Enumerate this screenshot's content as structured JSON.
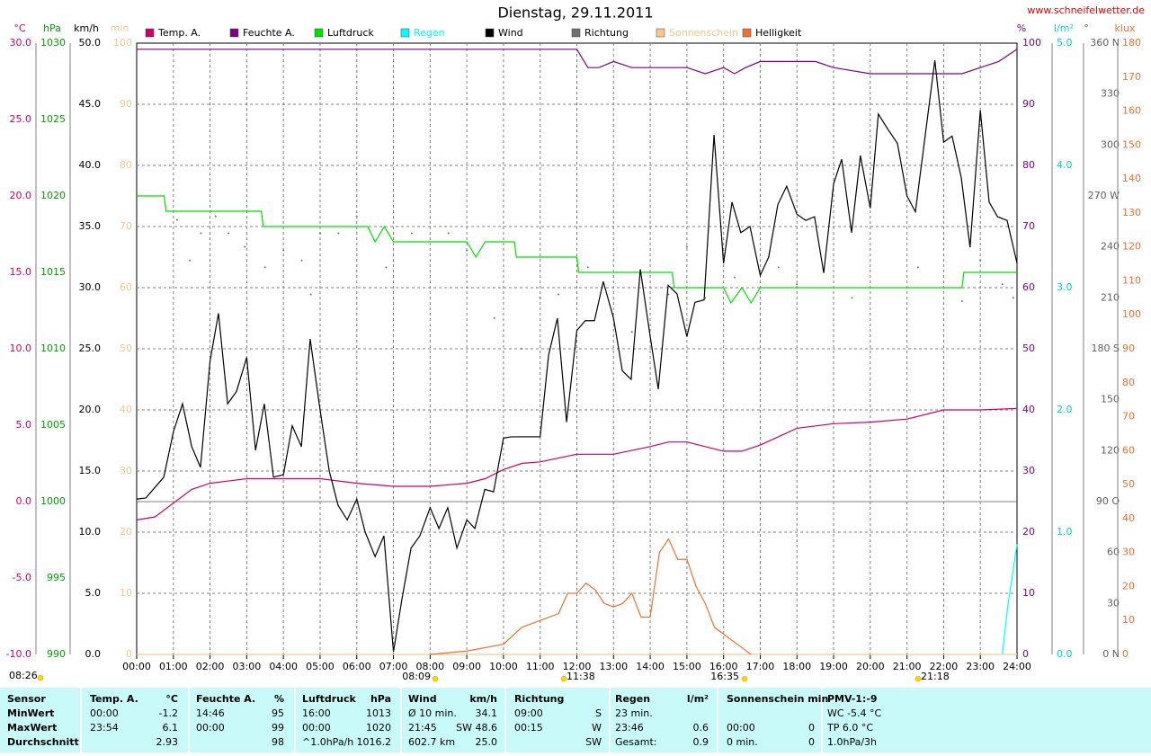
{
  "chart_data": {
    "type": "line",
    "title": "Dienstag, 29.11.2011",
    "source": "www.schneifelwetter.de",
    "xlim": [
      0,
      24
    ],
    "xticks": [
      {
        "value": 0,
        "label": "00:00"
      },
      {
        "value": 1,
        "label": "01:00"
      },
      {
        "value": 2,
        "label": "02:00"
      },
      {
        "value": 3,
        "label": "03:00"
      },
      {
        "value": 4,
        "label": "04:00"
      },
      {
        "value": 5,
        "label": "05:00"
      },
      {
        "value": 6,
        "label": "06:00"
      },
      {
        "value": 7,
        "label": "07:00"
      },
      {
        "value": 8,
        "label": "08:00"
      },
      {
        "value": 9,
        "label": "09:00"
      },
      {
        "value": 10,
        "label": "10:00"
      },
      {
        "value": 11,
        "label": "11:00"
      },
      {
        "value": 12,
        "label": "12:00"
      },
      {
        "value": 13,
        "label": "13:00"
      },
      {
        "value": 14,
        "label": "14:00"
      },
      {
        "value": 15,
        "label": "15:00"
      },
      {
        "value": 16,
        "label": "16:00"
      },
      {
        "value": 17,
        "label": "17:00"
      },
      {
        "value": 18,
        "label": "18:00"
      },
      {
        "value": 19,
        "label": "19:00"
      },
      {
        "value": 20,
        "label": "20:00"
      },
      {
        "value": 21,
        "label": "21:00"
      },
      {
        "value": 22,
        "label": "22:00"
      },
      {
        "value": 23,
        "label": "23:00"
      },
      {
        "value": 24,
        "label": "24:00"
      }
    ],
    "grid": true,
    "zero_line_axis": 0,
    "axes": [
      {
        "unit": "°C",
        "color": "#cc0066",
        "lim": [
          -10,
          30
        ],
        "ticks": [
          {
            "value": 30,
            "label": "30.0"
          },
          {
            "value": 25,
            "label": "25.0"
          },
          {
            "value": 20,
            "label": "20.0"
          },
          {
            "value": 15,
            "label": "15.0"
          },
          {
            "value": 10,
            "label": "10.0"
          },
          {
            "value": 5,
            "label": "5.0"
          },
          {
            "value": 0,
            "label": "0.0"
          },
          {
            "value": -5,
            "label": "-5.0"
          },
          {
            "value": -10,
            "label": "-10.0"
          }
        ]
      },
      {
        "unit": "hPa",
        "color": "#00a000",
        "lim": [
          990,
          1030
        ],
        "ticks": [
          1030,
          1025,
          1020,
          1015,
          1010,
          1005,
          1000,
          995,
          990
        ]
      },
      {
        "unit": "km/h",
        "color": "#000000",
        "lim": [
          0,
          50
        ],
        "ticks": [
          {
            "value": 50,
            "label": "50.0"
          },
          {
            "value": 45,
            "label": "45.0"
          },
          {
            "value": 40,
            "label": "40.0"
          },
          {
            "value": 35,
            "label": "35.0"
          },
          {
            "value": 30,
            "label": "30.0"
          },
          {
            "value": 25,
            "label": "25.0"
          },
          {
            "value": 20,
            "label": "20.0"
          },
          {
            "value": 15,
            "label": "15.0"
          },
          {
            "value": 10,
            "label": "10.0"
          },
          {
            "value": 5,
            "label": "5.0"
          },
          {
            "value": 0,
            "label": "0.0"
          }
        ]
      },
      {
        "unit": "min",
        "color": "#f5c890",
        "lim": [
          0,
          100
        ],
        "ticks": [
          100,
          90,
          80,
          70,
          60,
          50,
          40,
          30,
          20,
          10,
          0
        ]
      },
      {
        "unit": "%",
        "color": "#800080",
        "lim": [
          0,
          100
        ],
        "ticks": [
          100,
          90,
          80,
          70,
          60,
          50,
          40,
          30,
          20,
          10,
          0
        ]
      },
      {
        "unit": "l/m²",
        "color": "#00d0d0",
        "lim": [
          0,
          5
        ],
        "ticks": [
          {
            "value": 5,
            "label": "5.0"
          },
          {
            "value": 4,
            "label": "4.0"
          },
          {
            "value": 3,
            "label": "3.0"
          },
          {
            "value": 2,
            "label": "2.0"
          },
          {
            "value": 1,
            "label": "1.0"
          },
          {
            "value": 0,
            "label": "0.0"
          }
        ]
      },
      {
        "unit": "°",
        "color": "#606060",
        "lim": [
          0,
          360
        ],
        "ticks": [
          {
            "value": 360,
            "label": "360 N"
          },
          330,
          300,
          {
            "value": 270,
            "label": "270 W"
          },
          240,
          210,
          {
            "value": 180,
            "label": "180 S"
          },
          150,
          120,
          {
            "value": 90,
            "label": "90 O"
          },
          60,
          30,
          {
            "value": 0,
            "label": "0 N"
          }
        ]
      },
      {
        "unit": "klux",
        "color": "#f07030",
        "lim": [
          0,
          180
        ],
        "ticks": [
          180,
          170,
          160,
          150,
          140,
          130,
          120,
          110,
          100,
          90,
          80,
          70,
          60,
          50,
          40,
          30,
          20,
          10,
          0
        ]
      }
    ],
    "series": [
      {
        "name": "Temp. A.",
        "color": "#cc0066",
        "axis": 0,
        "style": "line",
        "x": [
          0,
          0.5,
          1,
          1.5,
          2,
          3,
          4,
          5,
          6,
          7,
          8,
          9,
          9.5,
          10,
          10.5,
          11,
          12,
          13,
          14,
          14.5,
          15,
          16,
          16.5,
          17,
          18,
          19,
          20,
          21,
          22,
          23,
          24
        ],
        "values": [
          -1.2,
          -1.0,
          -0.1,
          0.8,
          1.2,
          1.5,
          1.5,
          1.5,
          1.2,
          1.0,
          1.0,
          1.2,
          1.5,
          2.1,
          2.5,
          2.6,
          3.1,
          3.1,
          3.6,
          3.9,
          3.9,
          3.3,
          3.3,
          3.7,
          4.8,
          5.1,
          5.2,
          5.4,
          6.0,
          6.0,
          6.1
        ]
      },
      {
        "name": "Feuchte A.",
        "color": "#800080",
        "axis": 4,
        "style": "line",
        "x": [
          0,
          12,
          12.3,
          12.6,
          13,
          13.5,
          15,
          15.5,
          16,
          16.3,
          16.6,
          17,
          18.5,
          19,
          20,
          22.5,
          23,
          23.5,
          24
        ],
        "values": [
          99,
          99,
          96,
          96,
          97,
          96,
          96,
          95,
          96,
          95,
          96,
          97,
          97,
          96,
          95,
          95,
          96,
          97,
          99
        ]
      },
      {
        "name": "Luftdruck",
        "color": "#00e000",
        "axis": 1,
        "style": "line",
        "x": [
          0,
          0.75,
          0.8,
          3.4,
          3.45,
          6.3,
          6.5,
          6.75,
          7,
          9,
          9.25,
          9.5,
          10.3,
          10.35,
          12,
          12.05,
          14.6,
          14.65,
          16,
          16.2,
          16.5,
          16.75,
          17,
          22.5,
          22.55,
          24
        ],
        "values": [
          1020,
          1020,
          1019,
          1019,
          1018,
          1018,
          1017,
          1018,
          1017,
          1017,
          1016,
          1017,
          1017,
          1016,
          1016,
          1015,
          1015,
          1014,
          1014,
          1013,
          1014,
          1013,
          1014,
          1014,
          1015,
          1015
        ]
      },
      {
        "name": "Regen",
        "color": "#00ffff",
        "axis": 5,
        "style": "line",
        "x": [
          23.6,
          23.75,
          23.85,
          24
        ],
        "values": [
          0,
          0.4,
          0.6,
          0.9
        ]
      },
      {
        "name": "Wind",
        "color": "#000000",
        "axis": 2,
        "style": "line",
        "x": [
          0,
          0.25,
          0.74,
          1,
          1.25,
          1.5,
          1.74,
          2,
          2.23,
          2.48,
          2.72,
          3,
          3.24,
          3.48,
          3.73,
          4,
          4.24,
          4.49,
          4.73,
          5,
          5.25,
          5.49,
          5.74,
          6,
          6.23,
          6.5,
          6.74,
          7,
          7.23,
          7.48,
          7.72,
          8,
          8.24,
          8.48,
          8.73,
          9,
          9.22,
          9.49,
          9.73,
          10,
          10.22,
          11,
          11.23,
          11.47,
          11.72,
          12,
          12.23,
          12.48,
          12.72,
          13,
          13.24,
          13.48,
          13.73,
          14,
          14.22,
          14.49,
          14.73,
          15,
          15.22,
          15.47,
          15.74,
          16,
          16.23,
          16.47,
          16.72,
          17,
          17.23,
          17.48,
          17.72,
          18,
          18.24,
          18.48,
          18.73,
          19,
          19.22,
          19.49,
          19.73,
          20,
          20.22,
          20.47,
          20.74,
          21,
          21.23,
          21.76,
          22,
          22.23,
          22.48,
          22.72,
          23,
          23.24,
          23.47,
          23.73,
          24
        ],
        "values": [
          12.7,
          12.8,
          14.5,
          18.2,
          20.5,
          17,
          15.3,
          24,
          27.9,
          20.5,
          21.5,
          24.3,
          16.7,
          20.5,
          14.5,
          14.7,
          18.7,
          17,
          25.8,
          20,
          15,
          12.2,
          11,
          12.7,
          10,
          8,
          9.7,
          0.2,
          4.5,
          8.7,
          9.7,
          12,
          10.3,
          12,
          8.7,
          11,
          10.3,
          13.5,
          13.3,
          17.7,
          17.8,
          17.8,
          24.5,
          27.5,
          19,
          26.5,
          27.3,
          27.3,
          30.5,
          27.5,
          23.2,
          22.5,
          31.5,
          26,
          21.7,
          30.2,
          29.5,
          26,
          28.8,
          29,
          42.5,
          32,
          37,
          34.5,
          35,
          31,
          32.5,
          36.8,
          38.3,
          36,
          35.5,
          35.8,
          31.2,
          38.5,
          40.5,
          34.5,
          40.8,
          36.5,
          44.2,
          43,
          41.8,
          37.5,
          36.2,
          48.6,
          41.9,
          42.4,
          39,
          33.3,
          44.5,
          37,
          35.8,
          35.5,
          32
        ]
      },
      {
        "name": "Richtung",
        "color": "#707070",
        "axis": 6,
        "style": "dots",
        "x": [
          1.1,
          1.45,
          1.75,
          2.15,
          2.5,
          2.95,
          3.5,
          4.0,
          4.5,
          4.75,
          5.0,
          5.5,
          6.0,
          6.8,
          7.5,
          8.5,
          9.0,
          9.75,
          10.5,
          11.0,
          11.5,
          12.3,
          13.5,
          14.5,
          15.0,
          15.5,
          16.3,
          17.5,
          18.0,
          19.5,
          21.3,
          22.5,
          23.0,
          23.6,
          23.9
        ],
        "values": [
          256,
          232,
          248,
          258,
          248,
          240,
          228,
          238,
          232,
          212,
          248,
          248,
          258,
          228,
          248,
          248,
          238,
          198,
          180,
          210,
          212,
          228,
          190,
          212,
          240,
          210,
          222,
          228,
          218,
          210,
          228,
          208,
          232,
          218,
          210
        ]
      },
      {
        "name": "Sonnenschein",
        "color": "#f5c890",
        "axis": 3,
        "style": "line",
        "x": [
          0,
          24
        ],
        "values": [
          0,
          0
        ]
      },
      {
        "name": "Helligkeit",
        "color": "#f07030",
        "axis": 7,
        "style": "line",
        "x": [
          8,
          9,
          10,
          10.5,
          11,
          11.5,
          11.75,
          12,
          12.25,
          12.5,
          12.75,
          13,
          13.25,
          13.5,
          13.75,
          14,
          14.25,
          14.5,
          14.75,
          15,
          15.25,
          15.5,
          15.75,
          16,
          16.5,
          16.75
        ],
        "values": [
          0,
          1,
          3,
          8,
          10,
          12,
          18,
          18,
          21,
          19,
          15,
          14,
          15,
          18,
          11,
          11,
          30,
          34,
          28,
          28,
          20,
          15,
          8,
          6,
          2,
          0
        ]
      }
    ],
    "annotations": [
      "08:26",
      "08:09",
      "11:38",
      "16:35",
      "21:18"
    ]
  },
  "table": {
    "rows": [
      [
        "Sensor",
        "Temp. A.",
        "°C",
        "Feuchte A.",
        "%",
        "Luftdruck",
        "hPa",
        "Wind",
        "km/h",
        "Richtung",
        null,
        "Regen",
        "l/m²",
        "Sonnenschein min",
        null,
        "PMV-1:-9"
      ],
      [
        "MinWert",
        "00:00",
        "-1.2",
        "14:46",
        "95",
        "16:00",
        "1013",
        "Ø 10 min.",
        "34.1",
        "09:00",
        "S",
        "23 min.",
        null,
        null,
        null,
        "WC -5.4 °C"
      ],
      [
        "MaxWert",
        "23:54",
        "6.1",
        "00:00",
        "99",
        "00:00",
        "1020",
        "21:45",
        "SW 48.6",
        "00:15",
        "W",
        "23:46",
        "0.6",
        "00:00",
        "0",
        "TP 6.0 °C"
      ],
      [
        "Durchschnitt",
        null,
        "2.93",
        null,
        "98",
        "^1.0hPa/h",
        "1016.2",
        "602.7 km",
        "25.0",
        null,
        "SW",
        "Gesamt:",
        "0.9",
        "0 min.",
        "0",
        "1.0hPa/3h"
      ]
    ]
  }
}
